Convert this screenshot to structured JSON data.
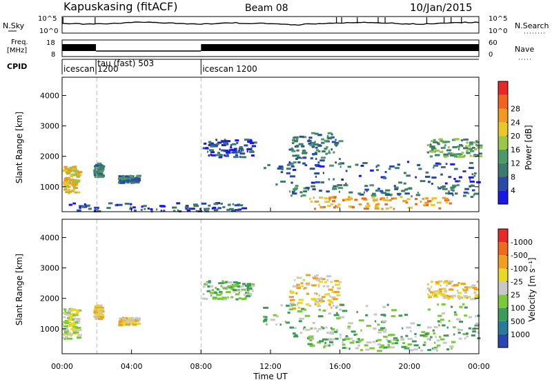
{
  "header": {
    "station": "Kapuskasing (fitACF)",
    "beam": "Beam 08",
    "date": "10/Jan/2015"
  },
  "strips": {
    "nsky_label": "N.Sky",
    "nsky_ticks": [
      "10^5",
      "10^0"
    ],
    "nsearch_label": "N.Search",
    "nsearch_ticks": [
      "10^5",
      "10^0"
    ],
    "freq_label_1": "Freq.",
    "freq_label_2": "[MHz]",
    "freq_ticks": [
      "18",
      "8"
    ],
    "nave_label": "Nave",
    "nave_ticks": [
      "60",
      "0"
    ],
    "cpid_label": "CPID",
    "cpid_modes": [
      {
        "start_hour": 0.0,
        "text": "icescan"
      },
      {
        "start_hour": 0.05,
        "text": "1200"
      },
      {
        "start_hour": 1.95,
        "text": "tau (fast) 503"
      },
      {
        "start_hour": 8.0,
        "text": "icescan 1200"
      }
    ]
  },
  "colorbars": {
    "power": {
      "title": "Power [dB]",
      "ticks": [
        "4",
        "8",
        "12",
        "16",
        "20",
        "24",
        "28"
      ],
      "colors": [
        "#1a1ae6",
        "#2a4aa8",
        "#3c7a6c",
        "#4c9a6a",
        "#9ac648",
        "#e8c828",
        "#f09a22",
        "#f0641e",
        "#e62828"
      ]
    },
    "velocity": {
      "title": "Velocity [m s⁻¹]",
      "ticks": [
        "1000",
        "500",
        "100",
        "25",
        "-25",
        "-100",
        "-500",
        "-1000"
      ],
      "colors": [
        "#2a44b0",
        "#2a7a9a",
        "#3c9a5a",
        "#7ac83c",
        "#c8c8c8",
        "#e8d82a",
        "#f0a020",
        "#f06a1e",
        "#e62a2a"
      ]
    }
  },
  "chart_data": [
    {
      "type": "heatmap",
      "name": "power",
      "ylabel": "Slant Range [km]",
      "yticks": [
        1000,
        2000,
        3000,
        4000
      ],
      "ylim": [
        180,
        4600
      ],
      "xlim": [
        0,
        24
      ],
      "scan_boundaries_hours": [
        2.0,
        8.0
      ],
      "echo_regions": [
        {
          "t": [
            0.0,
            0.9
          ],
          "r": [
            820,
            1700
          ],
          "level": "24"
        },
        {
          "t": [
            1.8,
            2.2
          ],
          "r": [
            1350,
            1800
          ],
          "level": "12"
        },
        {
          "t": [
            3.2,
            4.3
          ],
          "r": [
            1150,
            1400
          ],
          "level": "12"
        },
        {
          "t": [
            0.0,
            10.5
          ],
          "r": [
            220,
            500
          ],
          "level": "8"
        },
        {
          "t": [
            8.0,
            11.0
          ],
          "r": [
            2000,
            2600
          ],
          "level": "8"
        },
        {
          "t": [
            13.0,
            16.0
          ],
          "r": [
            1700,
            2800
          ],
          "level": "12"
        },
        {
          "t": [
            11.5,
            24.0
          ],
          "r": [
            1100,
            1850
          ],
          "level": "8"
        },
        {
          "t": [
            13.0,
            24.0
          ],
          "r": [
            700,
            1100
          ],
          "level": "12"
        },
        {
          "t": [
            14.0,
            22.5
          ],
          "r": [
            300,
            700
          ],
          "level": "28"
        },
        {
          "t": [
            21.0,
            24.0
          ],
          "r": [
            2000,
            2600
          ],
          "level": "16"
        }
      ]
    },
    {
      "type": "heatmap",
      "name": "velocity",
      "ylabel": "Slant Range [km]",
      "yticks": [
        1000,
        2000,
        3000,
        4000
      ],
      "ylim": [
        180,
        4600
      ],
      "xlim": [
        0,
        24
      ],
      "xlabel": "Time UT",
      "xticks": [
        "00:00",
        "04:00",
        "08:00",
        "12:00",
        "16:00",
        "20:00",
        "00:00"
      ],
      "scan_boundaries_hours": [
        2.0,
        8.0
      ],
      "echo_regions": [
        {
          "t": [
            0.0,
            0.9
          ],
          "r": [
            700,
            1700
          ],
          "level": "-25"
        },
        {
          "t": [
            1.8,
            2.2
          ],
          "r": [
            1350,
            1800
          ],
          "level": "-100"
        },
        {
          "t": [
            3.2,
            4.3
          ],
          "r": [
            1150,
            1400
          ],
          "level": "-100"
        },
        {
          "t": [
            8.0,
            11.0
          ],
          "r": [
            2000,
            2600
          ],
          "level": "25"
        },
        {
          "t": [
            13.0,
            16.0
          ],
          "r": [
            1700,
            2800
          ],
          "level": "-100"
        },
        {
          "t": [
            11.5,
            24.0
          ],
          "r": [
            1100,
            1850
          ],
          "level": "25"
        },
        {
          "t": [
            13.0,
            24.0
          ],
          "r": [
            700,
            1100
          ],
          "level": "25"
        },
        {
          "t": [
            14.0,
            22.5
          ],
          "r": [
            300,
            700
          ],
          "level": "25"
        },
        {
          "t": [
            21.0,
            24.0
          ],
          "r": [
            2000,
            2600
          ],
          "level": "-100"
        }
      ]
    }
  ]
}
